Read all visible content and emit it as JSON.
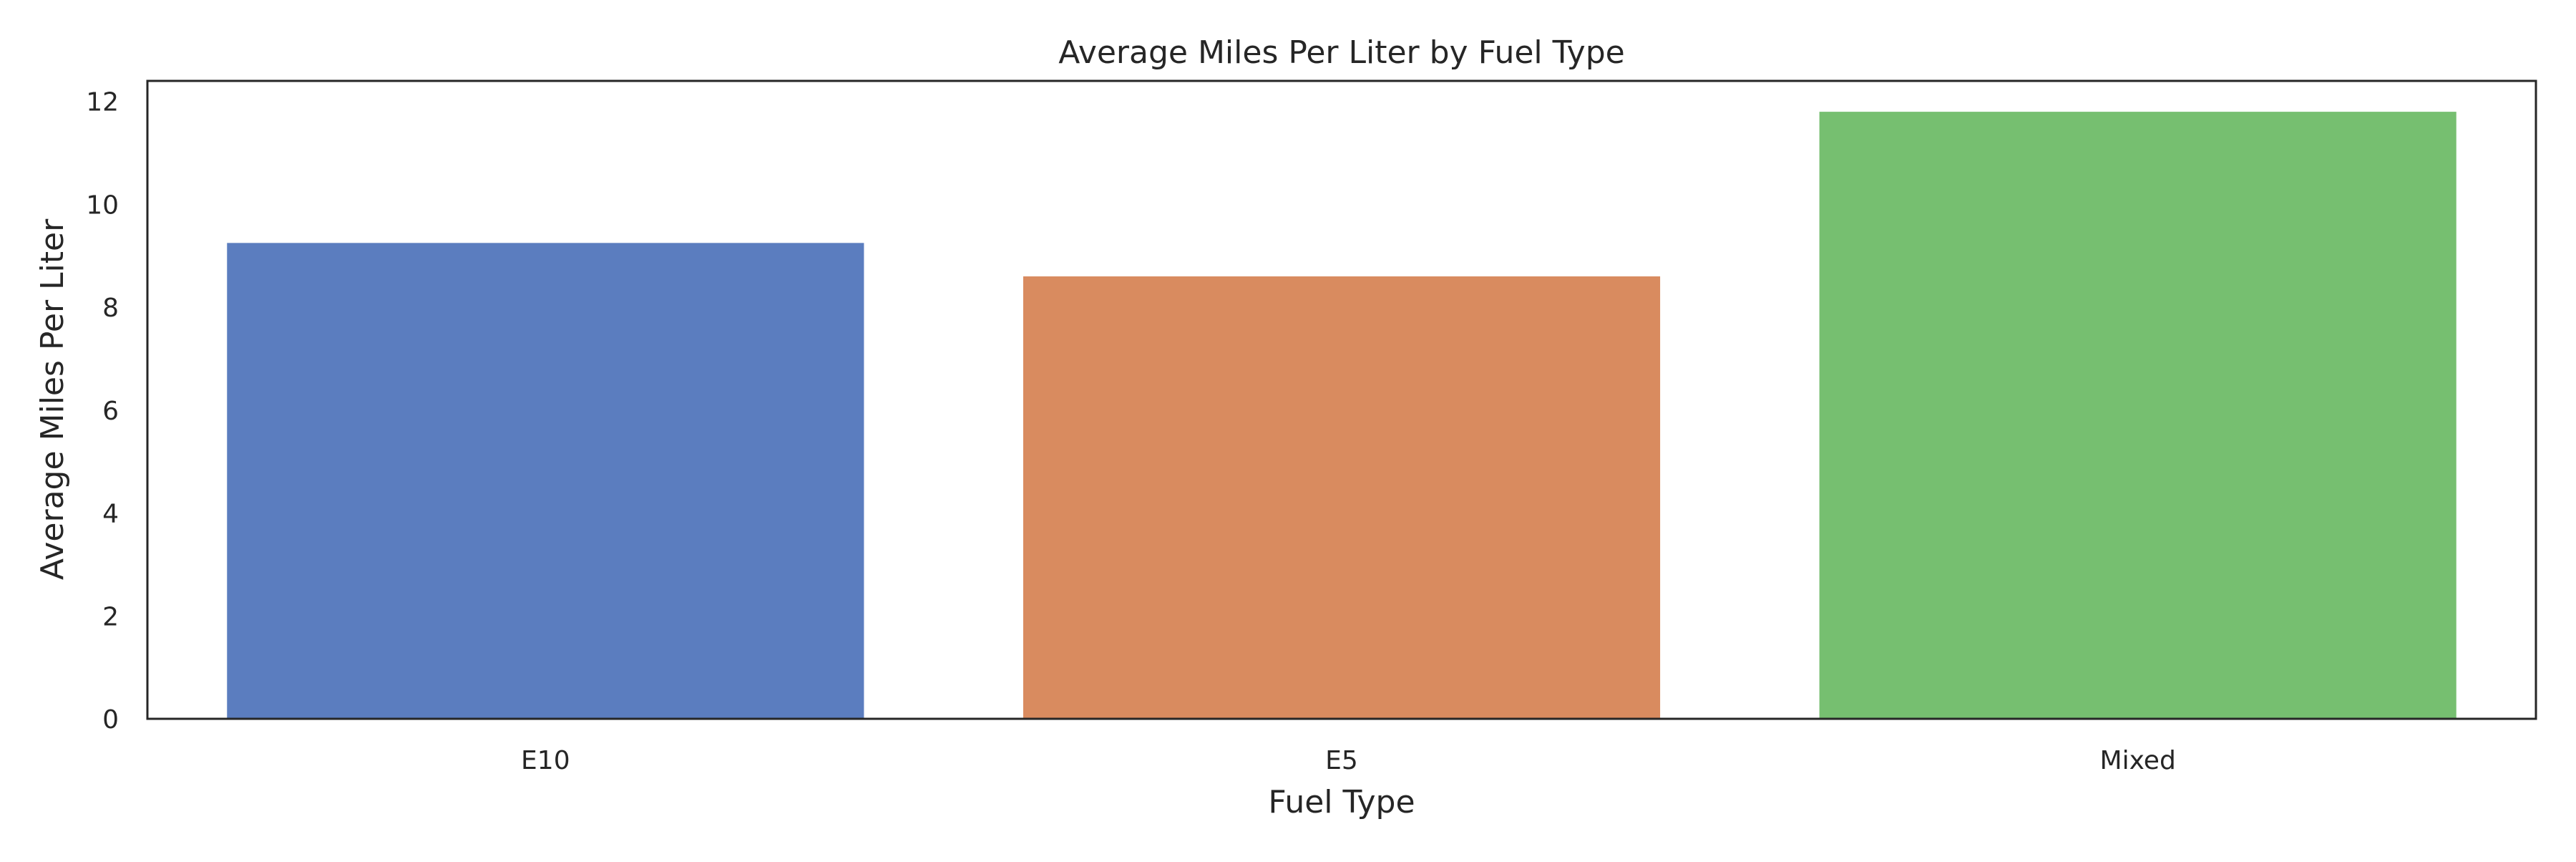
{
  "chart_data": {
    "type": "bar",
    "title": "Average Miles Per Liter by Fuel Type",
    "xlabel": "Fuel Type",
    "ylabel": "Average Miles Per Liter",
    "categories": [
      "E10",
      "E5",
      "Mixed"
    ],
    "values": [
      9.25,
      8.6,
      11.8
    ],
    "colors": [
      "#5b7dbf",
      "#d98b5f",
      "#76bf70"
    ],
    "ylim": [
      0,
      12.4
    ],
    "yticks": [
      0,
      2,
      4,
      6,
      8,
      10,
      12
    ],
    "grid": false,
    "legend": false
  }
}
